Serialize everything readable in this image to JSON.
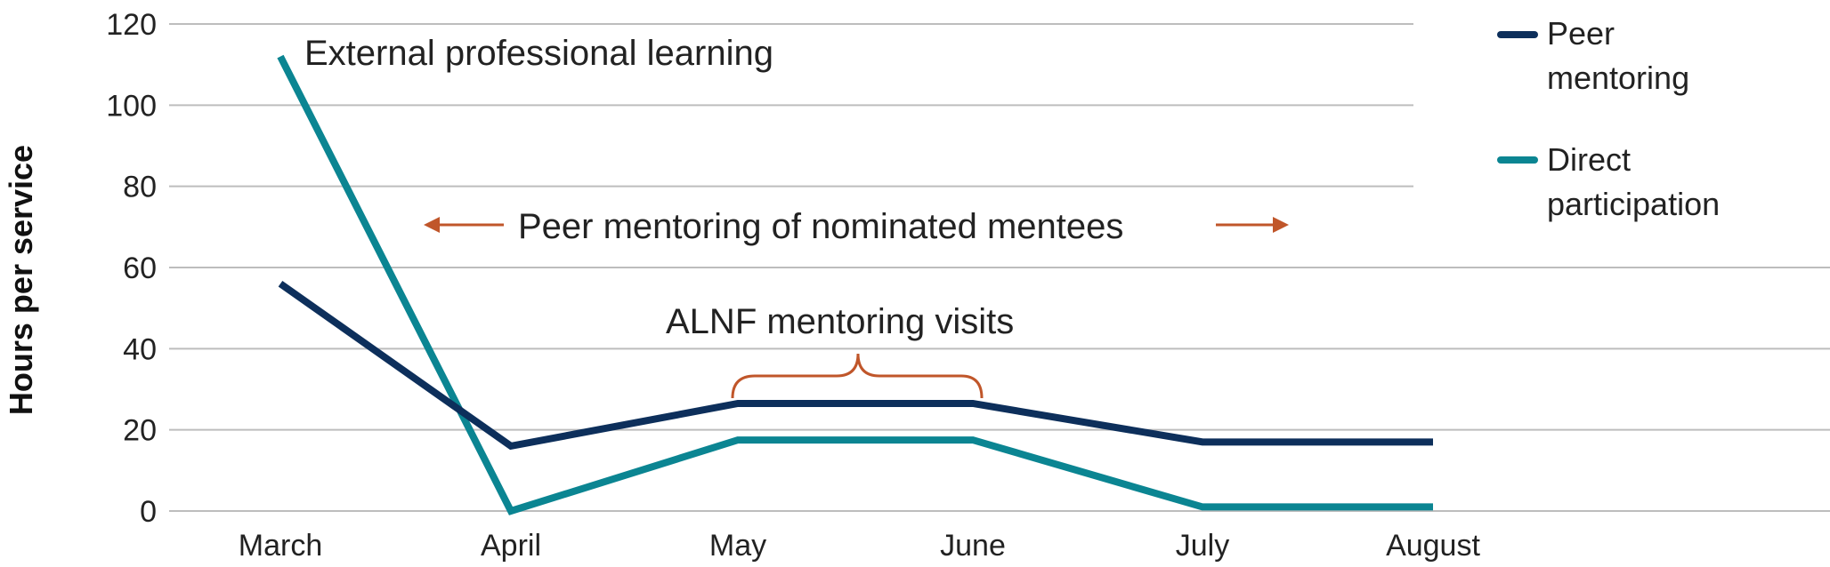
{
  "chart_data": {
    "type": "line",
    "ylabel": "Hours per service",
    "xlabel": "",
    "ylim": [
      0,
      120
    ],
    "yticks": [
      0,
      20,
      40,
      60,
      80,
      100,
      120
    ],
    "grid": true,
    "legend_position": "right",
    "categories": [
      "March",
      "April",
      "May",
      "June",
      "July",
      "August"
    ],
    "series": [
      {
        "name": "Peer mentoring",
        "color": "#0d2f5b",
        "values": [
          56,
          16,
          26.5,
          26.5,
          17,
          17
        ]
      },
      {
        "name": "Direct participation",
        "color": "#0b8592",
        "values": [
          112,
          0,
          17.5,
          17.5,
          1,
          1
        ]
      }
    ],
    "annotations": {
      "external": "External professional learning",
      "peer_range": "Peer mentoring of nominated mentees",
      "visits": "ALNF mentoring visits"
    },
    "annotation_color": "#c0562a"
  }
}
